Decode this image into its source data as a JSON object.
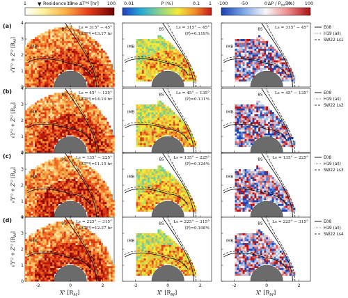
{
  "colorbars": [
    {
      "label": "Residence time ΔT",
      "sup": "eq",
      "unit": "[hr]",
      "ticks": [
        "1",
        "10",
        "100"
      ],
      "scale": "log",
      "colormap": "hot-yellow-to-darkred",
      "marker": "▼"
    },
    {
      "label": "P (%)",
      "ticks": [
        "0.01",
        "0.1",
        "1"
      ],
      "scale": "log",
      "colormap": "jet-cool-to-warm"
    },
    {
      "label": "ΔP / P",
      "sub": "tot",
      "unit": "(%)",
      "ticks": [
        "-100",
        "-50",
        "0",
        "50",
        "100"
      ],
      "scale": "linear",
      "colormap": "blue-white-red"
    }
  ],
  "rows": [
    {
      "tag": "(a)",
      "ls": "Ls = 315° − 45°",
      "mean_dt": "⟨ΔT",
      "mean_dt_val": "⟩=13.17 hr",
      "mean_p": "⟨P⟩=0.119%",
      "legend": [
        "E08",
        "H19 (all)",
        "SW22 Ls1"
      ]
    },
    {
      "tag": "(b)",
      "ls": "Ls = 45° − 135°",
      "mean_dt": "⟨ΔT",
      "mean_dt_val": "⟩=14.19 hr",
      "mean_p": "⟨P⟩=0.131%",
      "legend": [
        "E08",
        "H19 (all)",
        "SW22 Ls2"
      ]
    },
    {
      "tag": "(c)",
      "ls": "Ls = 135° − 225°",
      "mean_dt": "⟨ΔT",
      "mean_dt_val": "⟩=11.15 hr",
      "mean_p": "⟨P⟩=0.124%",
      "legend": [
        "E08",
        "H19 (all)",
        "SW22 Ls3"
      ]
    },
    {
      "tag": "(d)",
      "ls": "Ls = 225° − 315°",
      "mean_dt": "⟨ΔT",
      "mean_dt_val": "⟩=12.37 hr",
      "mean_p": "⟨P⟩=0.108%",
      "legend": [
        "E08",
        "H19 (all)",
        "SW22 Ls4"
      ]
    }
  ],
  "boundary_labels": {
    "bs": "BS",
    "imb": "IMB"
  },
  "axes": {
    "ylabel": "√(Y'² + Z'²) [R_M]",
    "ylabel_main": "√Y'² + Z'²",
    "ylabel_unit": "[R",
    "ylabel_sub": "M",
    "xlabel_main": "X'",
    "xlabel_unit": "[R",
    "xlabel_sub": "M",
    "xticks": [
      "-2",
      "0",
      "2"
    ],
    "yticks": [
      "0",
      "1",
      "2",
      "3",
      "4"
    ],
    "xlim": [
      -2.8,
      2.7
    ],
    "ylim": [
      0,
      4
    ]
  },
  "colors": {
    "mars_disk": "#6b6b6b",
    "boundary": "#000000"
  }
}
